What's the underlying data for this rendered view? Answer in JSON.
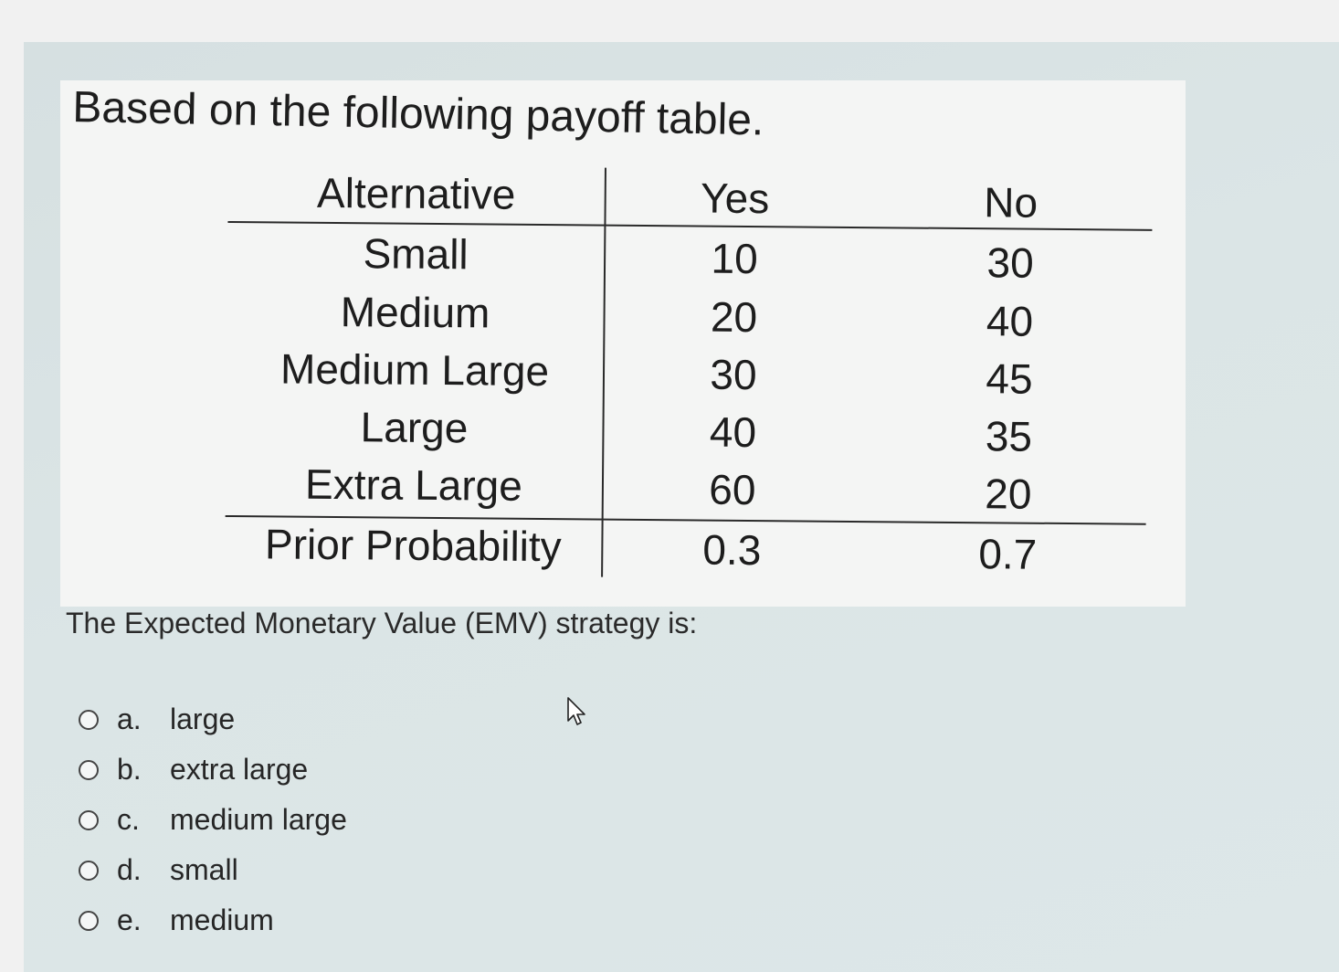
{
  "question": {
    "title": "Based on the following payoff table.",
    "prompt": "The Expected Monetary Value (EMV) strategy is:"
  },
  "payoff_table": {
    "headers": [
      "Alternative",
      "Yes",
      "No"
    ],
    "rows": [
      [
        "Small",
        "10",
        "30"
      ],
      [
        "Medium",
        "20",
        "40"
      ],
      [
        "Medium Large",
        "30",
        "45"
      ],
      [
        "Large",
        "40",
        "35"
      ],
      [
        "Extra Large",
        "60",
        "20"
      ]
    ],
    "probability_row": [
      "Prior Probability",
      "0.3",
      "0.7"
    ]
  },
  "options": [
    {
      "letter": "a.",
      "label": "large"
    },
    {
      "letter": "b.",
      "label": "extra large"
    },
    {
      "letter": "c.",
      "label": "medium large"
    },
    {
      "letter": "d.",
      "label": "small"
    },
    {
      "letter": "e.",
      "label": "medium"
    }
  ],
  "icons": {
    "radio": "radio-unchecked-icon",
    "cursor": "mouse-pointer-icon"
  }
}
